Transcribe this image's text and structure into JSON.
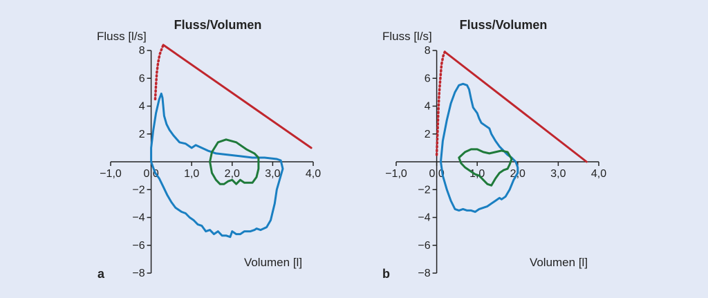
{
  "chart_data": [
    {
      "panel_label": "a",
      "type": "line",
      "title": "Fluss/Volumen",
      "xlabel": "Volumen [l]",
      "ylabel": "Fluss [l/s]",
      "xlim": [
        -1.0,
        4.0
      ],
      "ylim": [
        -8,
        8
      ],
      "x_ticks": [
        -1.0,
        0.0,
        1.0,
        2.0,
        3.0,
        4.0
      ],
      "x_tick_labels": [
        "−1,0",
        "0,0",
        "1,0",
        "2,0",
        "3,0",
        "4,0"
      ],
      "y_ticks": [
        8,
        6,
        4,
        2,
        -2,
        -4,
        -6,
        -8
      ],
      "y_tick_labels": [
        "8",
        "6",
        "4",
        "2",
        "−2",
        "−4",
        "−6",
        "−8"
      ],
      "series": [
        {
          "color": "#c0262d",
          "style": "dotted",
          "x": [
            0.1,
            0.12,
            0.14,
            0.17,
            0.21,
            0.26,
            0.3
          ],
          "y": [
            4.5,
            5.5,
            6.4,
            7.1,
            7.7,
            8.1,
            8.4
          ]
        },
        {
          "color": "#c0262d",
          "style": "solid",
          "x": [
            0.3,
            3.95
          ],
          "y": [
            8.4,
            1.0
          ]
        },
        {
          "color": "#1a7fc1",
          "style": "solid",
          "closed": true,
          "x": [
            0.0,
            0.0,
            0.05,
            0.12,
            0.2,
            0.25,
            0.28,
            0.32,
            0.38,
            0.45,
            0.55,
            0.7,
            0.85,
            0.95,
            1.0,
            1.1,
            1.25,
            1.4,
            1.6,
            1.9,
            2.2,
            2.5,
            2.8,
            3.1,
            3.2,
            3.25,
            3.2,
            3.1,
            3.05,
            3.0,
            2.95,
            2.85,
            2.7,
            2.6,
            2.55,
            2.45,
            2.3,
            2.2,
            2.1,
            2.0,
            1.95,
            1.85,
            1.75,
            1.65,
            1.55,
            1.45,
            1.35,
            1.25,
            1.15,
            1.05,
            0.95,
            0.85,
            0.75,
            0.6,
            0.5,
            0.4,
            0.3,
            0.2,
            0.1,
            0.05,
            0.0
          ],
          "y": [
            0.0,
            1.0,
            2.2,
            3.5,
            4.5,
            4.9,
            4.6,
            3.3,
            2.7,
            2.3,
            1.9,
            1.4,
            1.3,
            1.1,
            1.0,
            1.2,
            1.0,
            0.8,
            0.6,
            0.5,
            0.4,
            0.3,
            0.3,
            0.2,
            0.1,
            -0.5,
            -1.0,
            -2.0,
            -3.0,
            -3.6,
            -4.2,
            -4.7,
            -4.9,
            -4.8,
            -4.9,
            -5.0,
            -5.0,
            -5.2,
            -5.2,
            -5.0,
            -5.4,
            -5.3,
            -5.3,
            -5.0,
            -5.2,
            -4.9,
            -5.0,
            -4.6,
            -4.5,
            -4.2,
            -4.0,
            -3.7,
            -3.6,
            -3.3,
            -2.9,
            -2.4,
            -1.8,
            -1.2,
            -0.8,
            -0.4,
            0.0
          ]
        },
        {
          "color": "#1f7a3a",
          "style": "solid",
          "closed": true,
          "x": [
            1.45,
            1.5,
            1.65,
            1.85,
            2.1,
            2.35,
            2.55,
            2.65,
            2.65,
            2.6,
            2.5,
            2.4,
            2.3,
            2.2,
            2.1,
            2.0,
            1.9,
            1.8,
            1.7,
            1.6,
            1.5,
            1.45
          ],
          "y": [
            0.0,
            0.7,
            1.4,
            1.6,
            1.4,
            0.9,
            0.6,
            0.3,
            -0.5,
            -1.1,
            -1.5,
            -1.5,
            -1.5,
            -1.3,
            -1.6,
            -1.3,
            -1.4,
            -1.6,
            -1.6,
            -1.3,
            -0.8,
            0.0
          ]
        }
      ]
    },
    {
      "panel_label": "b",
      "type": "line",
      "title": "Fluss/Volumen",
      "xlabel": "Volumen [l]",
      "ylabel": "Fluss [l/s]",
      "xlim": [
        -1.0,
        4.0
      ],
      "ylim": [
        -8,
        8
      ],
      "x_ticks": [
        -1.0,
        0.0,
        1.0,
        2.0,
        3.0,
        4.0
      ],
      "x_tick_labels": [
        "−1,0",
        "0,0",
        "1,0",
        "2,0",
        "3,0",
        "4,0"
      ],
      "y_ticks": [
        8,
        6,
        4,
        2,
        -2,
        -4,
        -6,
        -8
      ],
      "y_tick_labels": [
        "8",
        "6",
        "4",
        "2",
        "−2",
        "−4",
        "−6",
        "−8"
      ],
      "series": [
        {
          "color": "#c0262d",
          "style": "dotted",
          "x": [
            0.0,
            0.02,
            0.04,
            0.06,
            0.09,
            0.12,
            0.16,
            0.2
          ],
          "y": [
            0.5,
            2.0,
            3.5,
            4.8,
            6.0,
            7.0,
            7.6,
            7.9
          ]
        },
        {
          "color": "#c0262d",
          "style": "solid",
          "x": [
            0.2,
            3.7
          ],
          "y": [
            7.9,
            0.0
          ]
        },
        {
          "color": "#1a7fc1",
          "style": "solid",
          "closed": true,
          "x": [
            0.1,
            0.15,
            0.25,
            0.35,
            0.45,
            0.55,
            0.65,
            0.75,
            0.8,
            0.85,
            0.9,
            1.0,
            1.05,
            1.1,
            1.2,
            1.3,
            1.35,
            1.45,
            1.55,
            1.65,
            1.75,
            1.85,
            1.95,
            2.0,
            2.0,
            1.9,
            1.8,
            1.7,
            1.6,
            1.55,
            1.45,
            1.35,
            1.25,
            1.15,
            1.05,
            0.95,
            0.85,
            0.75,
            0.65,
            0.55,
            0.45,
            0.35,
            0.25,
            0.15,
            0.1
          ],
          "y": [
            0.0,
            1.5,
            3.0,
            4.2,
            5.0,
            5.5,
            5.6,
            5.5,
            5.2,
            4.5,
            3.9,
            3.5,
            3.1,
            2.8,
            2.6,
            2.4,
            2.0,
            1.5,
            1.1,
            0.8,
            0.5,
            0.3,
            0.0,
            -0.4,
            -0.8,
            -1.3,
            -2.0,
            -2.5,
            -2.7,
            -2.6,
            -2.8,
            -3.0,
            -3.2,
            -3.3,
            -3.4,
            -3.6,
            -3.5,
            -3.5,
            -3.4,
            -3.5,
            -3.4,
            -2.8,
            -2.0,
            -1.0,
            0.0
          ]
        },
        {
          "color": "#1f7a3a",
          "style": "solid",
          "closed": true,
          "x": [
            0.55,
            0.7,
            0.85,
            1.0,
            1.15,
            1.3,
            1.45,
            1.6,
            1.75,
            1.85,
            1.8,
            1.75,
            1.65,
            1.55,
            1.45,
            1.35,
            1.25,
            1.15,
            1.05,
            0.95,
            0.85,
            0.7,
            0.6,
            0.55
          ],
          "y": [
            0.3,
            0.7,
            0.9,
            0.9,
            0.7,
            0.6,
            0.7,
            0.8,
            0.7,
            0.2,
            -0.2,
            -0.5,
            -0.6,
            -0.8,
            -1.2,
            -1.7,
            -1.6,
            -1.3,
            -1.0,
            -0.9,
            -0.7,
            -0.4,
            -0.1,
            0.3
          ]
        }
      ]
    }
  ]
}
